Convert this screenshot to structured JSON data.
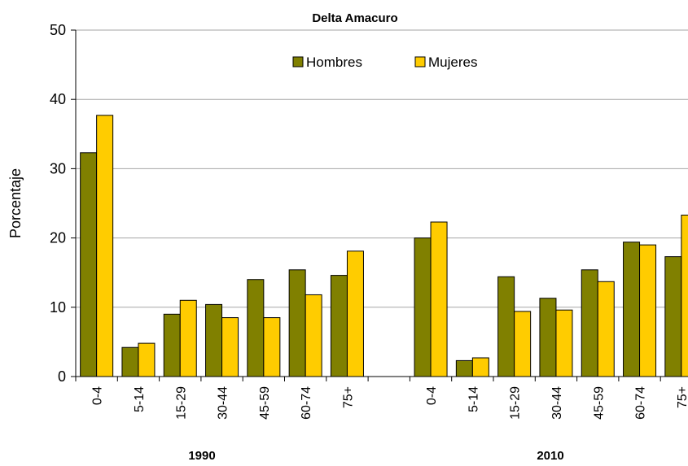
{
  "chart_data": {
    "type": "bar",
    "title": "Delta Amacuro",
    "xlabel": "",
    "ylabel": "Porcentaje",
    "ylim": [
      0,
      50
    ],
    "yticks": [
      0,
      10,
      20,
      30,
      40,
      50
    ],
    "grid": true,
    "legend_position": "top-center",
    "groups": [
      {
        "label": "1990",
        "categories": [
          "0-4",
          "5-14",
          "15-29",
          "30-44",
          "45-59",
          "60-74",
          "75+"
        ],
        "series": [
          {
            "name": "Hombres",
            "values": [
              32.3,
              4.2,
              9.0,
              10.4,
              14.0,
              15.4,
              14.6
            ]
          },
          {
            "name": "Mujeres",
            "values": [
              37.7,
              4.8,
              11.0,
              8.5,
              8.5,
              11.8,
              18.1
            ]
          }
        ]
      },
      {
        "label": "2010",
        "categories": [
          "0-4",
          "5-14",
          "15-29",
          "30-44",
          "45-59",
          "60-74",
          "75+"
        ],
        "series": [
          {
            "name": "Hombres",
            "values": [
              20.0,
              2.3,
              14.4,
              11.3,
              15.4,
              19.4,
              17.3
            ]
          },
          {
            "name": "Mujeres",
            "values": [
              22.3,
              2.7,
              9.4,
              9.6,
              13.7,
              19.0,
              23.3
            ]
          }
        ]
      }
    ],
    "legend": [
      {
        "name": "Hombres",
        "color": "#808000"
      },
      {
        "name": "Mujeres",
        "color": "#ffcc00"
      }
    ],
    "colors": {
      "Hombres": "#808000",
      "Mujeres": "#ffcc00"
    }
  }
}
